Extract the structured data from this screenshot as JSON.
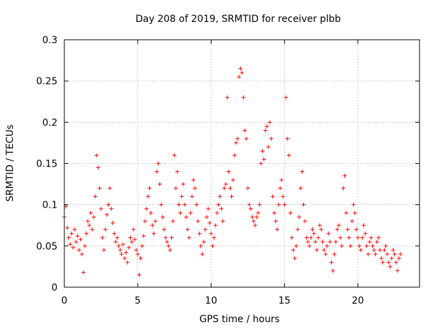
{
  "chart_data": {
    "type": "scatter",
    "title": "Day 208 of 2019, SRMTID for receiver plbb",
    "xlabel": "GPS time / hours",
    "ylabel": "SRMTID / TECUs",
    "xlim": [
      0,
      24.2
    ],
    "ylim": [
      0,
      0.3
    ],
    "x_ticks": [
      0,
      5,
      10,
      15,
      20
    ],
    "x_tick_labels": [
      "0",
      "5",
      "10",
      "15",
      "20"
    ],
    "y_ticks": [
      0,
      0.05,
      0.1,
      0.15,
      0.2,
      0.25,
      0.3
    ],
    "y_tick_labels": [
      "0",
      "0.05",
      "0.1",
      "0.15",
      "0.2",
      "0.25",
      "0.3"
    ],
    "grid": true,
    "marker": "plus",
    "color": "#ff0000",
    "series": [
      {
        "name": "SRMTID",
        "points": [
          [
            0.0,
            0.085
          ],
          [
            0.1,
            0.098
          ],
          [
            0.2,
            0.072
          ],
          [
            0.3,
            0.06
          ],
          [
            0.4,
            0.052
          ],
          [
            0.5,
            0.065
          ],
          [
            0.6,
            0.048
          ],
          [
            0.7,
            0.07
          ],
          [
            0.8,
            0.055
          ],
          [
            0.9,
            0.062
          ],
          [
            1.0,
            0.045
          ],
          [
            1.1,
            0.058
          ],
          [
            1.2,
            0.04
          ],
          [
            1.3,
            0.018
          ],
          [
            1.4,
            0.05
          ],
          [
            1.5,
            0.065
          ],
          [
            1.6,
            0.08
          ],
          [
            1.7,
            0.075
          ],
          [
            1.8,
            0.09
          ],
          [
            1.9,
            0.07
          ],
          [
            2.0,
            0.085
          ],
          [
            2.1,
            0.11
          ],
          [
            2.2,
            0.16
          ],
          [
            2.3,
            0.145
          ],
          [
            2.4,
            0.12
          ],
          [
            2.5,
            0.095
          ],
          [
            2.6,
            0.06
          ],
          [
            2.7,
            0.045
          ],
          [
            2.8,
            0.07
          ],
          [
            2.9,
            0.088
          ],
          [
            3.0,
            0.1
          ],
          [
            3.1,
            0.12
          ],
          [
            3.2,
            0.095
          ],
          [
            3.3,
            0.078
          ],
          [
            3.4,
            0.065
          ],
          [
            3.5,
            0.055
          ],
          [
            3.6,
            0.06
          ],
          [
            3.7,
            0.05
          ],
          [
            3.8,
            0.045
          ],
          [
            3.9,
            0.04
          ],
          [
            4.0,
            0.052
          ],
          [
            4.1,
            0.035
          ],
          [
            4.2,
            0.042
          ],
          [
            4.3,
            0.03
          ],
          [
            4.4,
            0.048
          ],
          [
            4.5,
            0.06
          ],
          [
            4.6,
            0.055
          ],
          [
            4.7,
            0.07
          ],
          [
            4.8,
            0.058
          ],
          [
            4.9,
            0.045
          ],
          [
            5.0,
            0.04
          ],
          [
            5.1,
            0.015
          ],
          [
            5.2,
            0.035
          ],
          [
            5.3,
            0.05
          ],
          [
            5.4,
            0.062
          ],
          [
            5.5,
            0.08
          ],
          [
            5.6,
            0.095
          ],
          [
            5.7,
            0.11
          ],
          [
            5.8,
            0.12
          ],
          [
            5.9,
            0.09
          ],
          [
            6.0,
            0.075
          ],
          [
            6.1,
            0.065
          ],
          [
            6.2,
            0.08
          ],
          [
            6.3,
            0.14
          ],
          [
            6.4,
            0.15
          ],
          [
            6.5,
            0.125
          ],
          [
            6.6,
            0.1
          ],
          [
            6.7,
            0.085
          ],
          [
            6.8,
            0.07
          ],
          [
            6.9,
            0.06
          ],
          [
            7.0,
            0.055
          ],
          [
            7.1,
            0.05
          ],
          [
            7.2,
            0.045
          ],
          [
            7.3,
            0.06
          ],
          [
            7.4,
            0.08
          ],
          [
            7.5,
            0.16
          ],
          [
            7.6,
            0.12
          ],
          [
            7.7,
            0.14
          ],
          [
            7.8,
            0.1
          ],
          [
            7.9,
            0.09
          ],
          [
            8.0,
            0.11
          ],
          [
            8.1,
            0.125
          ],
          [
            8.2,
            0.1
          ],
          [
            8.3,
            0.085
          ],
          [
            8.4,
            0.07
          ],
          [
            8.5,
            0.06
          ],
          [
            8.6,
            0.09
          ],
          [
            8.7,
            0.11
          ],
          [
            8.8,
            0.13
          ],
          [
            8.9,
            0.12
          ],
          [
            9.0,
            0.1
          ],
          [
            9.1,
            0.08
          ],
          [
            9.2,
            0.065
          ],
          [
            9.3,
            0.05
          ],
          [
            9.4,
            0.04
          ],
          [
            9.5,
            0.055
          ],
          [
            9.6,
            0.07
          ],
          [
            9.7,
            0.085
          ],
          [
            9.8,
            0.095
          ],
          [
            9.9,
            0.078
          ],
          [
            10.0,
            0.065
          ],
          [
            10.1,
            0.05
          ],
          [
            10.2,
            0.06
          ],
          [
            10.3,
            0.075
          ],
          [
            10.4,
            0.09
          ],
          [
            10.5,
            0.1
          ],
          [
            10.6,
            0.11
          ],
          [
            10.7,
            0.095
          ],
          [
            10.8,
            0.08
          ],
          [
            10.9,
            0.12
          ],
          [
            11.0,
            0.125
          ],
          [
            11.1,
            0.23
          ],
          [
            11.2,
            0.14
          ],
          [
            11.3,
            0.12
          ],
          [
            11.4,
            0.11
          ],
          [
            11.5,
            0.13
          ],
          [
            11.6,
            0.16
          ],
          [
            11.7,
            0.175
          ],
          [
            11.8,
            0.18
          ],
          [
            11.9,
            0.255
          ],
          [
            12.0,
            0.265
          ],
          [
            12.1,
            0.26
          ],
          [
            12.2,
            0.23
          ],
          [
            12.3,
            0.19
          ],
          [
            12.4,
            0.18
          ],
          [
            12.5,
            0.12
          ],
          [
            12.6,
            0.1
          ],
          [
            12.7,
            0.095
          ],
          [
            12.8,
            0.085
          ],
          [
            12.9,
            0.08
          ],
          [
            13.0,
            0.075
          ],
          [
            13.1,
            0.085
          ],
          [
            13.2,
            0.09
          ],
          [
            13.3,
            0.1
          ],
          [
            13.4,
            0.15
          ],
          [
            13.5,
            0.165
          ],
          [
            13.6,
            0.155
          ],
          [
            13.7,
            0.19
          ],
          [
            13.8,
            0.195
          ],
          [
            13.9,
            0.17
          ],
          [
            14.0,
            0.2
          ],
          [
            14.1,
            0.18
          ],
          [
            14.2,
            0.11
          ],
          [
            14.3,
            0.09
          ],
          [
            14.4,
            0.08
          ],
          [
            14.5,
            0.07
          ],
          [
            14.6,
            0.1
          ],
          [
            14.7,
            0.12
          ],
          [
            14.8,
            0.13
          ],
          [
            14.9,
            0.11
          ],
          [
            15.0,
            0.1
          ],
          [
            15.1,
            0.23
          ],
          [
            15.2,
            0.18
          ],
          [
            15.3,
            0.16
          ],
          [
            15.4,
            0.09
          ],
          [
            15.5,
            0.06
          ],
          [
            15.6,
            0.045
          ],
          [
            15.7,
            0.035
          ],
          [
            15.8,
            0.05
          ],
          [
            15.9,
            0.07
          ],
          [
            16.0,
            0.085
          ],
          [
            16.1,
            0.12
          ],
          [
            16.2,
            0.14
          ],
          [
            16.3,
            0.1
          ],
          [
            16.4,
            0.08
          ],
          [
            16.5,
            0.06
          ],
          [
            16.6,
            0.055
          ],
          [
            16.7,
            0.05
          ],
          [
            16.8,
            0.06
          ],
          [
            16.9,
            0.07
          ],
          [
            17.0,
            0.065
          ],
          [
            17.1,
            0.055
          ],
          [
            17.2,
            0.045
          ],
          [
            17.3,
            0.06
          ],
          [
            17.4,
            0.075
          ],
          [
            17.5,
            0.07
          ],
          [
            17.6,
            0.055
          ],
          [
            17.7,
            0.045
          ],
          [
            17.8,
            0.04
          ],
          [
            17.9,
            0.05
          ],
          [
            18.0,
            0.065
          ],
          [
            18.1,
            0.055
          ],
          [
            18.2,
            0.03
          ],
          [
            18.3,
            0.02
          ],
          [
            18.4,
            0.04
          ],
          [
            18.5,
            0.055
          ],
          [
            18.6,
            0.07
          ],
          [
            18.7,
            0.075
          ],
          [
            18.8,
            0.06
          ],
          [
            18.9,
            0.05
          ],
          [
            19.0,
            0.12
          ],
          [
            19.1,
            0.135
          ],
          [
            19.2,
            0.09
          ],
          [
            19.3,
            0.07
          ],
          [
            19.4,
            0.06
          ],
          [
            19.5,
            0.05
          ],
          [
            19.6,
            0.08
          ],
          [
            19.7,
            0.1
          ],
          [
            19.8,
            0.09
          ],
          [
            19.9,
            0.07
          ],
          [
            20.0,
            0.06
          ],
          [
            20.1,
            0.05
          ],
          [
            20.2,
            0.045
          ],
          [
            20.3,
            0.06
          ],
          [
            20.4,
            0.075
          ],
          [
            20.5,
            0.065
          ],
          [
            20.6,
            0.05
          ],
          [
            20.7,
            0.04
          ],
          [
            20.8,
            0.055
          ],
          [
            20.9,
            0.06
          ],
          [
            21.0,
            0.05
          ],
          [
            21.1,
            0.045
          ],
          [
            21.2,
            0.04
          ],
          [
            21.3,
            0.055
          ],
          [
            21.4,
            0.06
          ],
          [
            21.5,
            0.045
          ],
          [
            21.6,
            0.035
          ],
          [
            21.7,
            0.03
          ],
          [
            21.8,
            0.045
          ],
          [
            21.9,
            0.05
          ],
          [
            22.0,
            0.04
          ],
          [
            22.1,
            0.03
          ],
          [
            22.2,
            0.025
          ],
          [
            22.3,
            0.035
          ],
          [
            22.4,
            0.045
          ],
          [
            22.5,
            0.04
          ],
          [
            22.6,
            0.03
          ],
          [
            22.7,
            0.02
          ],
          [
            22.8,
            0.035
          ],
          [
            22.9,
            0.04
          ]
        ]
      }
    ]
  }
}
